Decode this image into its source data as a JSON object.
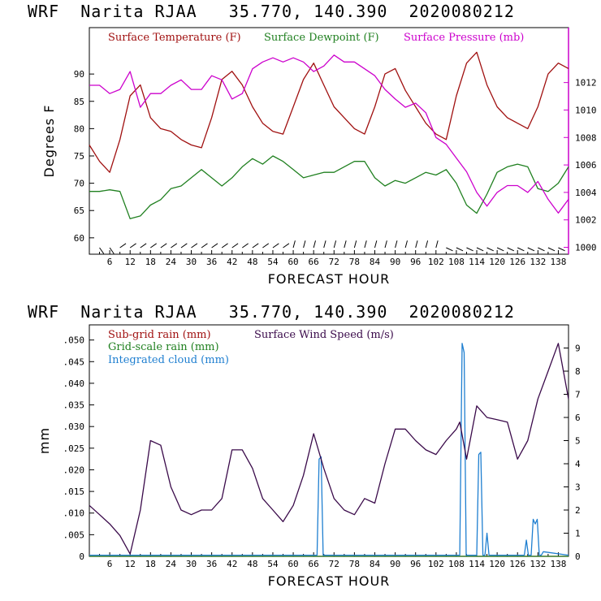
{
  "top_title": "WRF  Narita RJAA   35.770, 140.390  2020080212",
  "bottom_title": "WRF  Narita RJAA   35.770, 140.390  2020080212",
  "chart_data": [
    {
      "type": "line",
      "title": "WRF  Narita RJAA   35.770, 140.390  2020080212",
      "xlabel": "FORECAST HOUR",
      "ylabel": "Degrees F",
      "y2label": "Surface Pressure (mb)",
      "xlim": [
        0,
        141
      ],
      "ylim": [
        57,
        98.5
      ],
      "y2lim": [
        999.5,
        1016
      ],
      "x_ticks": [
        6,
        12,
        18,
        24,
        30,
        36,
        42,
        48,
        54,
        60,
        66,
        72,
        78,
        84,
        90,
        96,
        102,
        108,
        114,
        120,
        126,
        132,
        138
      ],
      "x_tick_labels": [
        "6",
        "12",
        "18",
        "24",
        "30",
        "36",
        "42",
        "48",
        "54",
        "60",
        "66",
        "72",
        "78",
        "84",
        "90",
        "96",
        "102",
        "108",
        "114",
        "120",
        "126",
        "132",
        "138"
      ],
      "y_ticks": [
        60,
        65,
        70,
        75,
        80,
        85,
        90
      ],
      "y_tick_labels": [
        "60",
        "65",
        "70",
        "75",
        "80",
        "85",
        "90"
      ],
      "y2_ticks": [
        1000,
        1002,
        1004,
        1006,
        1008,
        1010,
        1012
      ],
      "y2_tick_labels": [
        "1000",
        "1002",
        "1004",
        "1006",
        "1008",
        "1010",
        "1012"
      ],
      "wind_barbs": "present along bottom of panel",
      "series": [
        {
          "name": "Surface Temperature (F)",
          "color": "#a01010",
          "axis": "left",
          "x": [
            0,
            3,
            6,
            9,
            12,
            15,
            18,
            21,
            24,
            27,
            30,
            33,
            36,
            39,
            42,
            45,
            48,
            51,
            54,
            57,
            60,
            63,
            66,
            69,
            72,
            75,
            78,
            81,
            84,
            87,
            90,
            93,
            96,
            99,
            102,
            105,
            108,
            111,
            114,
            117,
            120,
            123,
            126,
            129,
            132,
            135,
            138,
            141
          ],
          "values": [
            77,
            74,
            72,
            78,
            86,
            88,
            82,
            80,
            79.5,
            78,
            77,
            76.5,
            82,
            89,
            90.5,
            88,
            84,
            81,
            79.5,
            79,
            84,
            89,
            92,
            88,
            84,
            82,
            80,
            79,
            84,
            90,
            91,
            87,
            84,
            81,
            79,
            78,
            86,
            92,
            94,
            88,
            84,
            82,
            81,
            80,
            84,
            90,
            92,
            91
          ]
        },
        {
          "name": "Surface Dewpoint (F)",
          "color": "#208020",
          "axis": "left",
          "x": [
            0,
            3,
            6,
            9,
            12,
            15,
            18,
            21,
            24,
            27,
            30,
            33,
            36,
            39,
            42,
            45,
            48,
            51,
            54,
            57,
            60,
            63,
            66,
            69,
            72,
            75,
            78,
            81,
            84,
            87,
            90,
            93,
            96,
            99,
            102,
            105,
            108,
            111,
            114,
            117,
            120,
            123,
            126,
            129,
            132,
            135,
            138,
            141
          ],
          "values": [
            68.5,
            68.5,
            68.8,
            68.5,
            63.5,
            64,
            66,
            67,
            69,
            69.5,
            71,
            72.5,
            71,
            69.5,
            71,
            73,
            74.5,
            73.5,
            75,
            74,
            72.5,
            71,
            71.5,
            72,
            72,
            73,
            74,
            74,
            71,
            69.5,
            70.5,
            70,
            71,
            72,
            71.5,
            72.5,
            70,
            66,
            64.5,
            68,
            72,
            73,
            73.5,
            73,
            69,
            68.5,
            70,
            73
          ]
        },
        {
          "name": "Surface Pressure (mb)",
          "color": "#cc00cc",
          "axis": "right",
          "x": [
            0,
            3,
            6,
            9,
            12,
            15,
            18,
            21,
            24,
            27,
            30,
            33,
            36,
            39,
            42,
            45,
            48,
            51,
            54,
            57,
            60,
            63,
            66,
            69,
            72,
            75,
            78,
            81,
            84,
            87,
            90,
            93,
            96,
            99,
            102,
            105,
            108,
            111,
            114,
            117,
            120,
            123,
            126,
            129,
            132,
            135,
            138,
            141
          ],
          "values": [
            1011.8,
            1011.8,
            1011.2,
            1011.5,
            1012.8,
            1010.2,
            1011.2,
            1011.2,
            1011.8,
            1012.2,
            1011.5,
            1011.5,
            1012.5,
            1012.2,
            1010.8,
            1011.2,
            1013,
            1013.5,
            1013.8,
            1013.5,
            1013.8,
            1013.5,
            1012.8,
            1013.2,
            1014,
            1013.5,
            1013.5,
            1013,
            1012.5,
            1011.5,
            1010.8,
            1010.2,
            1010.5,
            1009.8,
            1008,
            1007.5,
            1006.5,
            1005.5,
            1004,
            1003,
            1004,
            1004.5,
            1004.5,
            1004,
            1004.8,
            1003.5,
            1002.5,
            1003.5
          ]
        }
      ]
    },
    {
      "type": "line",
      "title": "WRF  Narita RJAA   35.770, 140.390  2020080212",
      "xlabel": "FORECAST HOUR",
      "ylabel": "mm",
      "xlim": [
        0,
        141
      ],
      "ylim": [
        0,
        0.0535
      ],
      "y2lim": [
        0,
        10
      ],
      "x_ticks": [
        6,
        12,
        18,
        24,
        30,
        36,
        42,
        48,
        54,
        60,
        66,
        72,
        78,
        84,
        90,
        96,
        102,
        108,
        114,
        120,
        126,
        132,
        138
      ],
      "x_tick_labels": [
        "6",
        "12",
        "18",
        "24",
        "30",
        "36",
        "42",
        "48",
        "54",
        "60",
        "66",
        "72",
        "78",
        "84",
        "90",
        "96",
        "102",
        "108",
        "114",
        "120",
        "126",
        "132",
        "138"
      ],
      "y_ticks": [
        0,
        0.005,
        0.01,
        0.015,
        0.02,
        0.025,
        0.03,
        0.035,
        0.04,
        0.045,
        0.05
      ],
      "y_tick_labels": [
        "0",
        ".005",
        ".010",
        ".015",
        ".020",
        ".025",
        ".030",
        ".035",
        ".040",
        ".045",
        ".050"
      ],
      "y2_ticks": [
        0,
        1,
        2,
        3,
        4,
        5,
        6,
        7,
        8,
        9
      ],
      "y2_tick_labels": [
        "0",
        "1",
        "2",
        "3",
        "4",
        "5",
        "6",
        "7",
        "8",
        "9"
      ],
      "series": [
        {
          "name": "Sub-grid rain (mm)",
          "color": "#a01010",
          "axis": "left",
          "x": [
            0,
            141
          ],
          "values": [
            0,
            0
          ]
        },
        {
          "name": "Grid-scale rain (mm)",
          "color": "#208020",
          "axis": "left",
          "x": [
            0,
            141
          ],
          "values": [
            0,
            0
          ]
        },
        {
          "name": "Integrated cloud (mm)",
          "color": "#1f7fd0",
          "axis": "right",
          "x": [
            0,
            67,
            67.6,
            68.2,
            68.8,
            69.4,
            109,
            109.7,
            110.3,
            110.9,
            111.5,
            114,
            114.6,
            115.2,
            115.8,
            116.4,
            117,
            117.6,
            118.2,
            118.8,
            128,
            128.6,
            129.2,
            130,
            130.6,
            131.2,
            131.8,
            132.4,
            133,
            133.6,
            141
          ],
          "values": [
            0.05,
            0.05,
            4.2,
            4.3,
            0.05,
            0.05,
            0.05,
            9.2,
            8.8,
            0.05,
            0.05,
            0.05,
            4.4,
            4.5,
            0.05,
            0.05,
            1.0,
            0.05,
            0.05,
            0.05,
            0.05,
            0.7,
            0.05,
            0.05,
            1.6,
            1.4,
            1.6,
            0.05,
            0.05,
            0.2,
            0.05
          ]
        },
        {
          "name": "Surface Wind Speed (m/s)",
          "color": "#3a0a4a",
          "axis": "right",
          "x": [
            0,
            3,
            6,
            9,
            12,
            15,
            18,
            21,
            24,
            27,
            30,
            33,
            36,
            39,
            42,
            45,
            48,
            51,
            54,
            57,
            60,
            63,
            66,
            69,
            72,
            75,
            78,
            81,
            84,
            87,
            90,
            93,
            96,
            99,
            102,
            105,
            108,
            109,
            111,
            114,
            117,
            120,
            123,
            126,
            129,
            132,
            135,
            138,
            141
          ],
          "values": [
            2.2,
            1.8,
            1.4,
            0.9,
            0.1,
            2.0,
            5.0,
            4.8,
            3.0,
            2.0,
            1.8,
            2.0,
            2.0,
            2.5,
            4.6,
            4.6,
            3.8,
            2.5,
            2.0,
            1.5,
            2.2,
            3.5,
            5.3,
            3.8,
            2.5,
            2.0,
            1.8,
            2.5,
            2.3,
            4.0,
            5.5,
            5.5,
            5.0,
            4.6,
            4.4,
            5.0,
            5.5,
            5.8,
            4.2,
            6.5,
            6.0,
            5.9,
            5.8,
            4.2,
            5.0,
            6.8,
            8.0,
            9.2,
            6.8
          ]
        }
      ]
    }
  ]
}
